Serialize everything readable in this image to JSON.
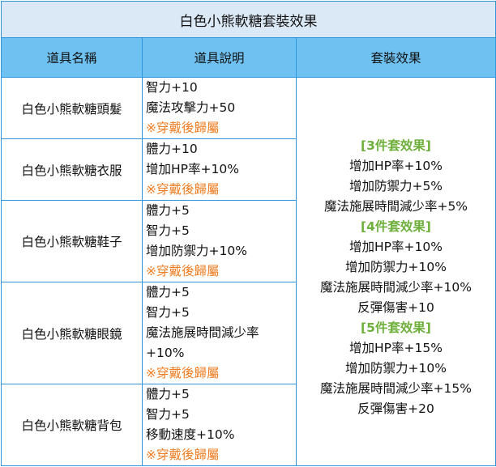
{
  "title": "白色小熊軟糖套裝效果",
  "headers": {
    "name": "道具名稱",
    "desc": "道具說明",
    "effect": "套裝效果"
  },
  "colors": {
    "border": "#2f95dc",
    "title_bg": "#dbe9f6",
    "header_bg": "#6ec1f0",
    "note": "#f07d22",
    "tier": "#6fb03c"
  },
  "items": [
    {
      "name": "白色小熊軟糖頭髮",
      "lines": [
        "智力+10",
        "魔法攻擊力+50"
      ],
      "note": "※穿戴後歸屬"
    },
    {
      "name": "白色小熊軟糖衣服",
      "lines": [
        "體力+10",
        "增加HP率+10%"
      ],
      "note": "※穿戴後歸屬"
    },
    {
      "name": "白色小熊軟糖鞋子",
      "lines": [
        "體力+5",
        "智力+5",
        "增加防禦力+10%"
      ],
      "note": "※穿戴後歸屬"
    },
    {
      "name": "白色小熊軟糖眼鏡",
      "lines": [
        "體力+5",
        "智力+5",
        "魔法施展時間減少率",
        "+10%"
      ],
      "note": "※穿戴後歸屬"
    },
    {
      "name": "白色小熊軟糖背包",
      "lines": [
        "體力+5",
        "智力+5",
        "移動速度+10%"
      ],
      "note": "※穿戴後歸屬"
    }
  ],
  "set_effects": [
    {
      "tier": "[3件套效果]",
      "effects": [
        "增加HP率+10%",
        "增加防禦力+5%",
        "魔法施展時間減少率+5%"
      ]
    },
    {
      "tier": "[4件套效果]",
      "effects": [
        "增加HP率+10%",
        "增加防禦力+10%",
        "魔法施展時間減少率+10%",
        "反彈傷害+10"
      ]
    },
    {
      "tier": "[5件套效果]",
      "effects": [
        "增加HP率+15%",
        "增加防禦力+10%",
        "魔法施展時間減少率+15%",
        "反彈傷害+20"
      ]
    }
  ]
}
